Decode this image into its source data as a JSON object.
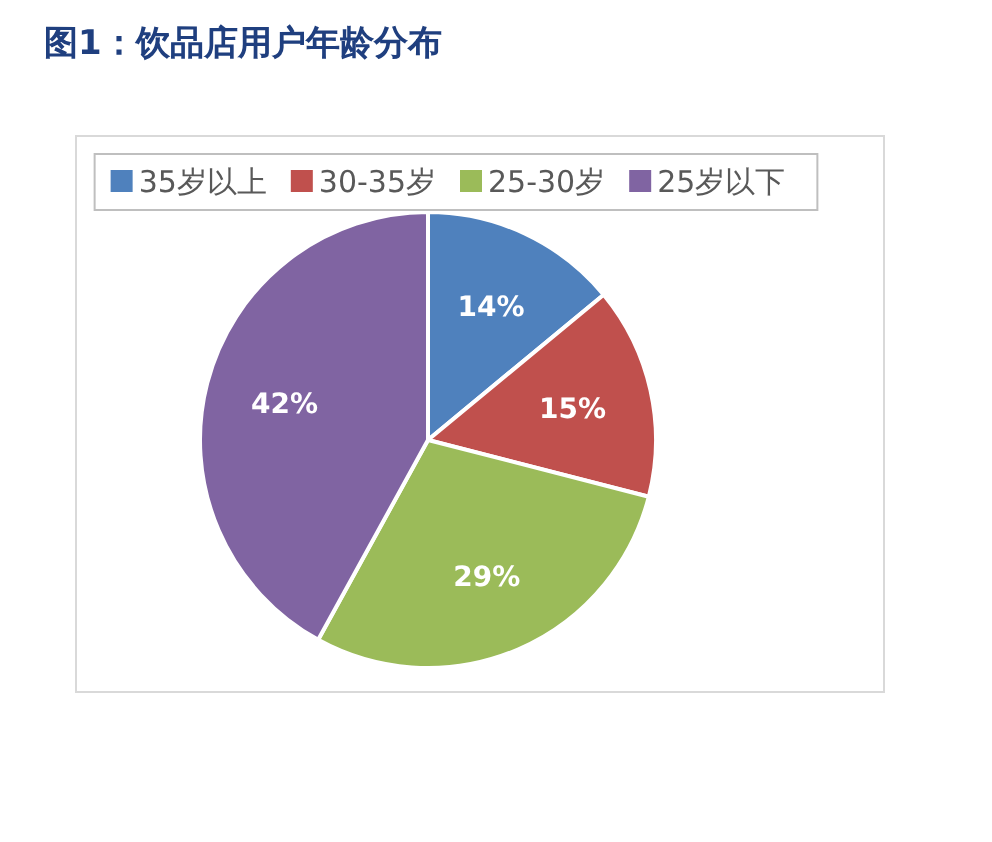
{
  "chart_data": {
    "type": "pie",
    "title": "图1：饮品店用户年龄分布",
    "categories": [
      "35岁以上",
      "30-35岁",
      "25-30岁",
      "25岁以下"
    ],
    "values": [
      14,
      15,
      29,
      42
    ],
    "colors": [
      "#4f81bd",
      "#c0504d",
      "#9bbb59",
      "#8064a2"
    ],
    "value_labels": [
      "14%",
      "15%",
      "29%",
      "42%"
    ],
    "legend": "top"
  }
}
